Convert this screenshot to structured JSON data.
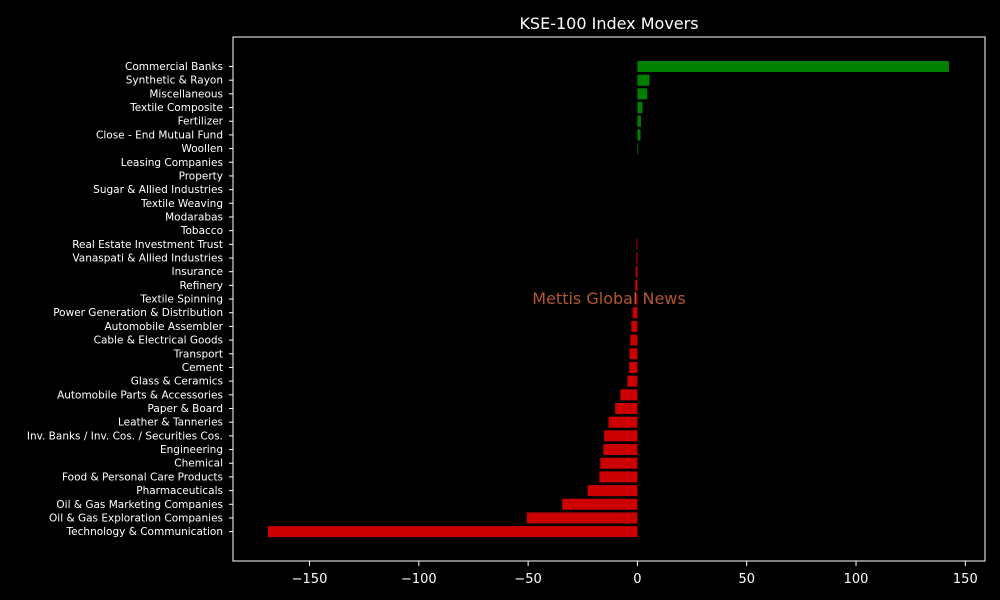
{
  "chart_data": {
    "type": "bar",
    "orientation": "horizontal",
    "title": "KSE-100 Index Movers",
    "watermark": "Mettis Global News",
    "xlabel": "",
    "ylabel": "",
    "xlim": [
      -185,
      159
    ],
    "xticks": [
      -150,
      -100,
      -50,
      0,
      50,
      100,
      150
    ],
    "xtick_labels": [
      "−150",
      "−100",
      "−50",
      "0",
      "50",
      "100",
      "150"
    ],
    "grid": false,
    "legend": "none",
    "colors": {
      "positive": "#008000",
      "negative": "#cc0000",
      "background": "#000000",
      "text": "#ffffff",
      "watermark": "#b5562f"
    },
    "categories": [
      "Commercial Banks",
      "Synthetic & Rayon",
      "Miscellaneous",
      "Textile Composite",
      "Fertilizer",
      "Close - End Mutual Fund",
      "Woollen",
      "Leasing Companies",
      "Property",
      "Sugar & Allied Industries",
      "Textile Weaving",
      "Modarabas",
      "Tobacco",
      "Real Estate Investment Trust",
      "Vanaspati & Allied Industries",
      "Insurance",
      "Refinery",
      "Textile Spinning",
      "Power Generation & Distribution",
      "Automobile Assembler",
      "Cable & Electrical Goods",
      "Transport",
      "Cement",
      "Glass & Ceramics",
      "Automobile Parts & Accessories",
      "Paper & Board",
      "Leather & Tanneries",
      "Inv. Banks / Inv. Cos. / Securities Cos.",
      "Engineering",
      "Chemical",
      "Food & Personal Care Products",
      "Pharmaceuticals",
      "Oil & Gas Marketing Companies",
      "Oil & Gas Exploration Companies",
      "Technology & Communication"
    ],
    "values": [
      142.5,
      5.5,
      4.5,
      2.3,
      1.6,
      1.4,
      0.3,
      0,
      0,
      0,
      0,
      0,
      0,
      -0.4,
      -0.5,
      -0.8,
      -1.0,
      -1.2,
      -2.2,
      -2.8,
      -3.2,
      -3.6,
      -3.8,
      -4.6,
      -7.8,
      -10.2,
      -13.2,
      -15.2,
      -15.6,
      -17.0,
      -17.4,
      -22.8,
      -34.4,
      -50.6,
      -169.0
    ]
  }
}
